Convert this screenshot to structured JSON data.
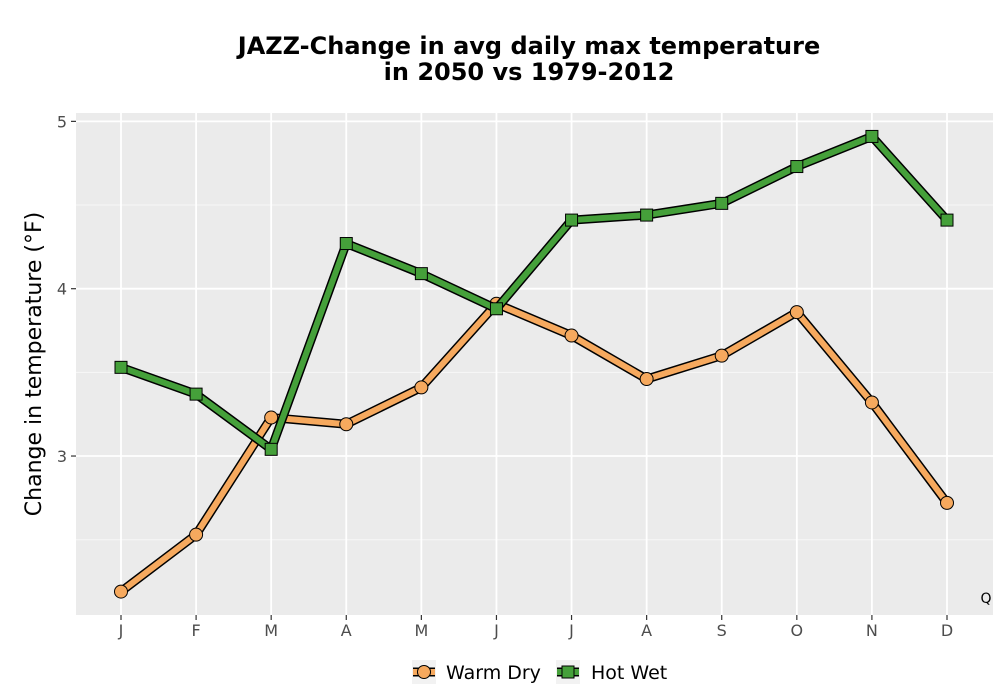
{
  "chart_data": {
    "type": "line",
    "title_line1": "JAZZ-Change in avg daily max temperature",
    "title_line2": "in 2050 vs 1979-2012",
    "xlabel": "",
    "ylabel": "Change in temperature (°F)",
    "categories": [
      "J",
      "F",
      "M",
      "A",
      "M",
      "J",
      "J",
      "A",
      "S",
      "O",
      "N",
      "D"
    ],
    "ylim": [
      2.05,
      5.05
    ],
    "yticks": [
      3,
      4,
      5
    ],
    "grid": true,
    "legend_position": "bottom",
    "corner_note": "Q",
    "series": [
      {
        "name": "Warm Dry",
        "color": "#f6a95e",
        "marker": "circle",
        "values": [
          2.19,
          2.53,
          3.23,
          3.19,
          3.41,
          3.91,
          3.72,
          3.46,
          3.6,
          3.86,
          3.32,
          2.72
        ]
      },
      {
        "name": "Hot Wet",
        "color": "#45a03a",
        "marker": "square",
        "values": [
          3.53,
          3.37,
          3.04,
          4.27,
          4.09,
          3.88,
          4.41,
          4.44,
          4.51,
          4.73,
          4.91,
          4.41
        ]
      }
    ]
  }
}
